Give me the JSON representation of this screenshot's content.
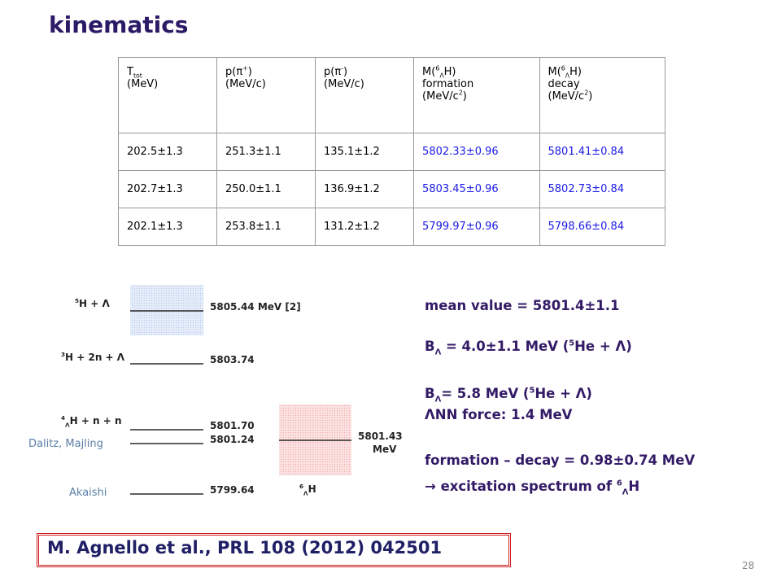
{
  "title": "kinematics",
  "table": {
    "header": [
      [
        [
          [
            "T",
            "normal"
          ],
          [
            "tot",
            "sub"
          ]
        ],
        [
          [
            "(MeV)",
            "normal"
          ]
        ]
      ],
      [
        [
          [
            "p(π",
            "normal"
          ],
          [
            "+",
            "sup"
          ],
          [
            ")",
            "normal"
          ]
        ],
        [
          [
            "(MeV/c)",
            "normal"
          ]
        ]
      ],
      [
        [
          [
            "p(π",
            "normal"
          ],
          [
            "-",
            "sup"
          ],
          [
            ")",
            "normal"
          ]
        ],
        [
          [
            "(MeV/c)",
            "normal"
          ]
        ]
      ],
      [
        [
          [
            "M(",
            "normal"
          ],
          [
            "6",
            "sup"
          ],
          [
            "Λ",
            "sub"
          ],
          [
            "H)",
            "normal"
          ]
        ],
        [
          [
            "formation",
            "normal"
          ]
        ],
        [
          [
            "(MeV/c",
            "normal"
          ],
          [
            "2",
            "sup"
          ],
          [
            ")",
            "normal"
          ]
        ]
      ],
      [
        [
          [
            "M(",
            "normal"
          ],
          [
            "6",
            "sup"
          ],
          [
            "Λ",
            "sub"
          ],
          [
            "H)",
            "normal"
          ]
        ],
        [
          [
            "decay",
            "normal"
          ]
        ],
        [
          [
            "(MeV/c",
            "normal"
          ],
          [
            "2",
            "sup"
          ],
          [
            ")",
            "normal"
          ]
        ]
      ]
    ],
    "rows": [
      [
        "202.5±1.3",
        "251.3±1.1",
        "135.1±1.2",
        "5802.33±0.96",
        "5801.41±0.84"
      ],
      [
        "202.7±1.3",
        "250.0±1.1",
        "136.9±1.2",
        "5803.45±0.96",
        "5802.73±0.84"
      ],
      [
        "202.1±1.3",
        "253.8±1.1",
        "131.2±1.2",
        "5799.97±0.96",
        "5798.66±0.84"
      ]
    ]
  },
  "diagram": {
    "levels": [
      {
        "label": [
          [
            "5",
            "sup"
          ],
          [
            "H + Λ",
            "normal"
          ]
        ],
        "value": "5805.44 MeV [2]"
      },
      {
        "label": [
          [
            "3",
            "sup"
          ],
          [
            "H + 2n + Λ",
            "normal"
          ]
        ],
        "value": "5803.74"
      },
      {
        "label": [
          [
            "4",
            "sup"
          ],
          [
            "Λ",
            "sub"
          ],
          [
            "H + n + n",
            "normal"
          ]
        ],
        "value": "5801.70"
      },
      {
        "value": "5801.24"
      },
      {
        "value": "5799.64"
      }
    ],
    "result": {
      "value": "5801.43",
      "unit": "MeV",
      "label": [
        [
          "6",
          "sup"
        ],
        [
          "Λ",
          "sub"
        ],
        [
          "H",
          "normal"
        ]
      ]
    },
    "authors": [
      "Dalitz, Majling",
      "Akaishi"
    ]
  },
  "notes": [
    [
      [
        "mean value = 5801.4±1.1",
        "normal"
      ]
    ],
    [
      [
        "B",
        "normal"
      ],
      [
        "Λ",
        "sub"
      ],
      [
        " = 4.0±1.1 MeV (",
        "normal"
      ],
      [
        "5",
        "sup"
      ],
      [
        "He + Λ)",
        "normal"
      ]
    ],
    [
      [
        "B",
        "normal"
      ],
      [
        "Λ",
        "sub"
      ],
      [
        "= 5.8 MeV  (",
        "normal"
      ],
      [
        "5",
        "sup"
      ],
      [
        "He + Λ)",
        "normal"
      ]
    ],
    [
      [
        "ΛNN force: 1.4 MeV",
        "normal"
      ]
    ],
    [
      [
        "formation – decay = 0.98±0.74 MeV",
        "normal"
      ]
    ],
    [
      [
        "→ excitation spectrum of ",
        "normal"
      ],
      [
        "6",
        "sup"
      ],
      [
        "Λ",
        "sub"
      ],
      [
        "H",
        "normal"
      ]
    ]
  ],
  "reference": "M. Agnello et al., PRL 108 (2012) 042501",
  "page_number": "28"
}
